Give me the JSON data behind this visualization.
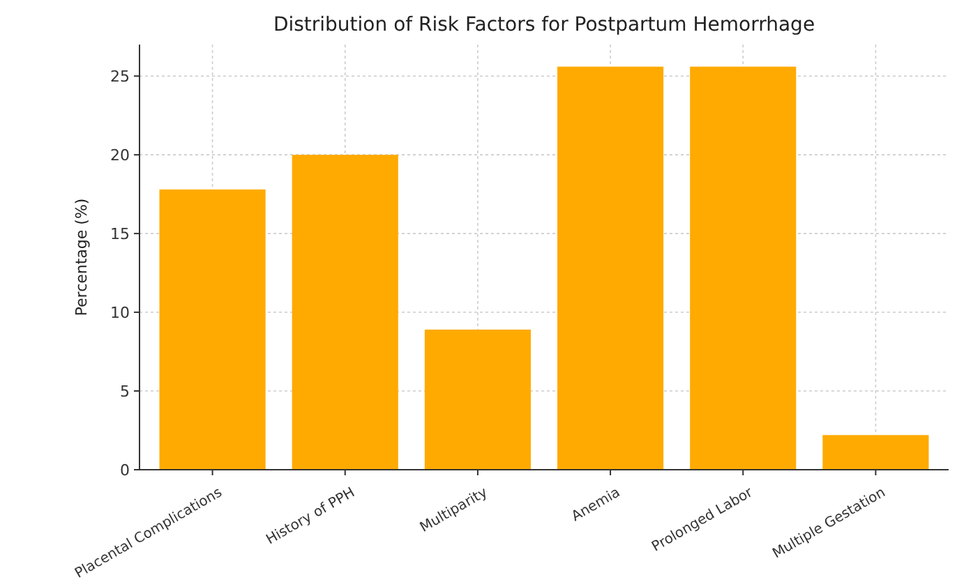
{
  "chart_data": {
    "type": "bar",
    "title": "Distribution of Risk Factors for Postpartum Hemorrhage",
    "ylabel": "Percentage (%)",
    "categories": [
      "Placental Complications",
      "History of PPH",
      "Multiparity",
      "Anemia",
      "Prolonged Labor",
      "Multiple Gestation"
    ],
    "values": [
      17.8,
      20.0,
      8.9,
      25.6,
      25.6,
      2.2
    ],
    "color": "#ffaa00",
    "ylim": [
      0,
      27
    ],
    "yticks": [
      0,
      5,
      10,
      15,
      20,
      25
    ],
    "grid": true
  }
}
